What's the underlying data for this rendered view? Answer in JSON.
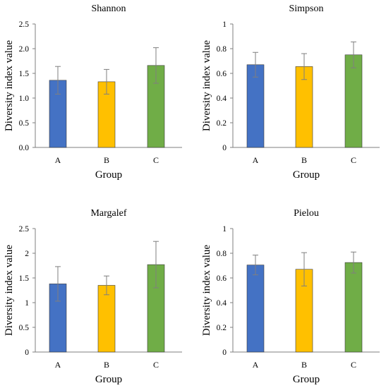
{
  "colors": {
    "A": "#4472c4",
    "B": "#ffc000",
    "C": "#70ad47",
    "error_bar": "#7f7f7f",
    "axis": "#7f7f7f"
  },
  "chart_data": [
    {
      "type": "bar",
      "title": "Shannon",
      "xlabel": "Group",
      "ylabel": "Diversity index value",
      "categories": [
        "A",
        "B",
        "C"
      ],
      "values": [
        1.36,
        1.33,
        1.66
      ],
      "errors": [
        0.28,
        0.25,
        0.36
      ],
      "ylim": [
        0,
        2.5
      ],
      "yticks": [
        "0.0",
        "0.5",
        "1.0",
        "1.5",
        "2.0",
        "2.5"
      ],
      "grid": false
    },
    {
      "type": "bar",
      "title": "Simpson",
      "xlabel": "Group",
      "ylabel": "Diversity index value",
      "categories": [
        "A",
        "B",
        "C"
      ],
      "values": [
        0.67,
        0.655,
        0.75
      ],
      "errors": [
        0.1,
        0.105,
        0.105
      ],
      "ylim": [
        0,
        1
      ],
      "yticks": [
        "0",
        "0.2",
        "0.4",
        "0.6",
        "0.8",
        "1"
      ],
      "grid": false
    },
    {
      "type": "bar",
      "title": "Margalef",
      "xlabel": "Group",
      "ylabel": "Diversity index value",
      "categories": [
        "A",
        "B",
        "C"
      ],
      "values": [
        1.38,
        1.35,
        1.77
      ],
      "errors": [
        0.35,
        0.19,
        0.47
      ],
      "ylim": [
        0,
        2.5
      ],
      "yticks": [
        "0",
        "0.5",
        "1",
        "1.5",
        "2",
        "2.5"
      ],
      "grid": false
    },
    {
      "type": "bar",
      "title": "Pielou",
      "xlabel": "Group",
      "ylabel": "Diversity index value",
      "categories": [
        "A",
        "B",
        "C"
      ],
      "values": [
        0.705,
        0.67,
        0.725
      ],
      "errors": [
        0.08,
        0.135,
        0.085
      ],
      "ylim": [
        0,
        1
      ],
      "yticks": [
        "0",
        "0.2",
        "0.4",
        "0.6",
        "0.8",
        "1"
      ],
      "grid": false
    }
  ]
}
